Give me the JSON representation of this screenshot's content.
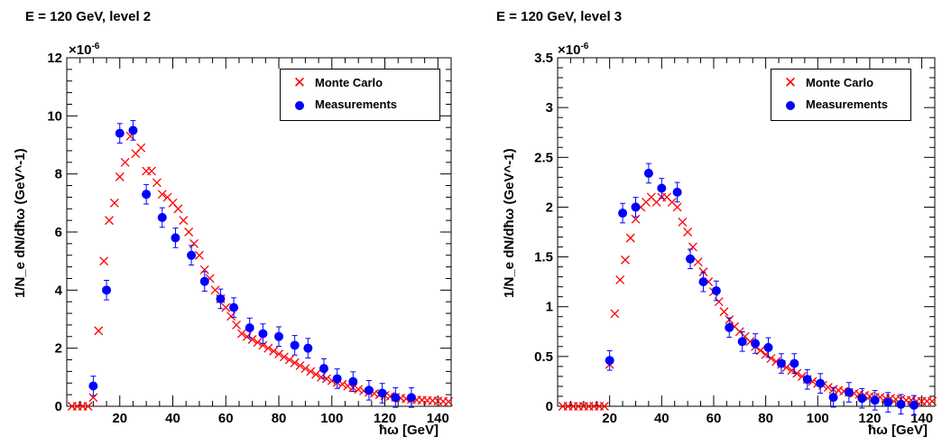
{
  "chart_data": [
    {
      "type": "scatter",
      "title": "E = 120 GeV, level 2",
      "xlabel": "ħω [GeV]",
      "ylabel": "1/N_e dN/dħω (GeV^-1)",
      "y_scale_label": "×10",
      "y_scale_exp": "-6",
      "xlim": [
        0,
        145
      ],
      "ylim": [
        0,
        12
      ],
      "x_ticks": [
        20,
        40,
        60,
        80,
        100,
        120,
        140
      ],
      "y_ticks": [
        0,
        2,
        4,
        6,
        8,
        10,
        12
      ],
      "legend": [
        "Monte Carlo",
        "Measurements"
      ],
      "legend_position": "top-right",
      "series": [
        {
          "name": "Monte Carlo",
          "color": "#ff0000",
          "marker": "x",
          "x": [
            2,
            4,
            6,
            8,
            10,
            12,
            14,
            16,
            18,
            20,
            22,
            24,
            26,
            28,
            30,
            32,
            34,
            36,
            38,
            40,
            42,
            44,
            46,
            48,
            50,
            52,
            54,
            56,
            58,
            60,
            62,
            64,
            66,
            68,
            70,
            72,
            74,
            76,
            78,
            80,
            82,
            84,
            86,
            88,
            90,
            92,
            94,
            96,
            98,
            100,
            102,
            104,
            106,
            108,
            110,
            112,
            114,
            116,
            118,
            120,
            122,
            124,
            126,
            128,
            130,
            132,
            134,
            136,
            138,
            140,
            142,
            144
          ],
          "y": [
            0,
            0,
            0,
            0,
            0.3,
            2.6,
            5.0,
            6.4,
            7.0,
            7.9,
            8.4,
            9.3,
            8.7,
            8.9,
            8.1,
            8.1,
            7.7,
            7.3,
            7.2,
            7.0,
            6.8,
            6.4,
            6.0,
            5.6,
            5.2,
            4.7,
            4.4,
            4.0,
            3.7,
            3.4,
            3.1,
            2.8,
            2.5,
            2.4,
            2.3,
            2.2,
            2.1,
            2.0,
            1.9,
            1.8,
            1.7,
            1.6,
            1.5,
            1.4,
            1.3,
            1.2,
            1.1,
            1.0,
            0.95,
            0.88,
            0.82,
            0.76,
            0.7,
            0.64,
            0.58,
            0.53,
            0.48,
            0.44,
            0.4,
            0.37,
            0.34,
            0.31,
            0.28,
            0.26,
            0.24,
            0.22,
            0.21,
            0.2,
            0.19,
            0.18,
            0.17,
            0.16
          ]
        },
        {
          "name": "Measurements",
          "color": "#0000ff",
          "marker": "circle",
          "x": [
            10,
            15,
            20,
            25,
            30,
            36,
            41,
            47,
            52,
            58,
            63,
            69,
            74,
            80,
            86,
            91,
            97,
            102,
            108,
            114,
            119,
            124,
            130
          ],
          "y": [
            0.7,
            4.0,
            9.4,
            9.5,
            7.3,
            6.5,
            5.8,
            5.2,
            4.3,
            3.7,
            3.4,
            2.7,
            2.5,
            2.4,
            2.1,
            2.0,
            1.3,
            0.95,
            0.85,
            0.55,
            0.45,
            0.3,
            0.3
          ]
        }
      ]
    },
    {
      "type": "scatter",
      "title": "E = 120 GeV, level 3",
      "xlabel": "ħω [GeV]",
      "ylabel": "1/N_e dN/dħω (GeV^-1)",
      "y_scale_label": "×10",
      "y_scale_exp": "-6",
      "xlim": [
        0,
        145
      ],
      "ylim": [
        0,
        3.5
      ],
      "x_ticks": [
        20,
        40,
        60,
        80,
        100,
        120,
        140
      ],
      "y_ticks": [
        0,
        0.5,
        1,
        1.5,
        2,
        2.5,
        3,
        3.5
      ],
      "legend": [
        "Monte Carlo",
        "Measurements"
      ],
      "legend_position": "top-right",
      "series": [
        {
          "name": "Monte Carlo",
          "color": "#ff0000",
          "marker": "x",
          "x": [
            2,
            4,
            6,
            8,
            10,
            12,
            14,
            16,
            18,
            20,
            22,
            24,
            26,
            28,
            30,
            32,
            34,
            36,
            38,
            40,
            42,
            44,
            46,
            48,
            50,
            52,
            54,
            56,
            58,
            60,
            62,
            64,
            66,
            68,
            70,
            72,
            74,
            76,
            78,
            80,
            82,
            84,
            86,
            88,
            90,
            92,
            94,
            96,
            98,
            100,
            102,
            104,
            106,
            108,
            110,
            112,
            114,
            116,
            118,
            120,
            122,
            124,
            126,
            128,
            130,
            132,
            134,
            136,
            138,
            140,
            142,
            144
          ],
          "y": [
            0,
            0,
            0,
            0,
            0,
            0,
            0,
            0,
            0,
            0.42,
            0.93,
            1.27,
            1.47,
            1.69,
            1.88,
            2.0,
            2.05,
            2.1,
            2.05,
            2.1,
            2.1,
            2.05,
            2.0,
            1.85,
            1.75,
            1.6,
            1.45,
            1.35,
            1.25,
            1.15,
            1.05,
            0.95,
            0.87,
            0.8,
            0.75,
            0.7,
            0.65,
            0.6,
            0.56,
            0.52,
            0.48,
            0.45,
            0.42,
            0.39,
            0.36,
            0.33,
            0.3,
            0.27,
            0.25,
            0.23,
            0.21,
            0.19,
            0.17,
            0.16,
            0.15,
            0.14,
            0.13,
            0.12,
            0.11,
            0.1,
            0.09,
            0.09,
            0.08,
            0.08,
            0.07,
            0.07,
            0.06,
            0.06,
            0.05,
            0.05,
            0.05,
            0.05
          ]
        },
        {
          "name": "Measurements",
          "color": "#0000ff",
          "marker": "circle",
          "x": [
            20,
            25,
            30,
            35,
            40,
            46,
            51,
            56,
            61,
            66,
            71,
            76,
            81,
            86,
            91,
            96,
            101,
            106,
            112,
            117,
            122,
            127,
            132,
            137
          ],
          "y": [
            0.46,
            1.94,
            2.0,
            2.34,
            2.19,
            2.15,
            1.48,
            1.25,
            1.16,
            0.79,
            0.65,
            0.63,
            0.59,
            0.43,
            0.43,
            0.27,
            0.23,
            0.09,
            0.14,
            0.08,
            0.06,
            0.04,
            0.02,
            0.01
          ]
        }
      ]
    }
  ]
}
